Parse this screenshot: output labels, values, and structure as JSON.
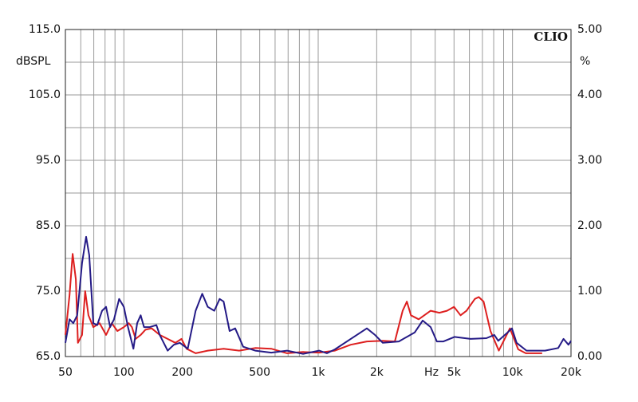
{
  "chart_data": {
    "type": "line",
    "brand": "CLIO",
    "ylabel": "dBSPL",
    "y2label": "%",
    "xlabel": "Hz",
    "xscale": "log",
    "grid": true,
    "xlim": [
      50,
      20000
    ],
    "xticks": [
      50,
      100,
      200,
      500,
      {
        "value": 1000,
        "label": "1k"
      },
      {
        "value": 2000,
        "label": "2k"
      },
      {
        "value": 5000,
        "label": "5k"
      },
      {
        "value": 10000,
        "label": "10k"
      },
      {
        "value": 20000,
        "label": "20k"
      }
    ],
    "xgrid": [
      60,
      70,
      80,
      90,
      300,
      400,
      600,
      700,
      800,
      900,
      3000,
      4000,
      6000,
      7000,
      8000,
      9000
    ],
    "ylim": [
      65,
      115
    ],
    "yticks": [
      {
        "value": 65,
        "label": "65.0"
      },
      {
        "value": 75,
        "label": "75.0"
      },
      {
        "value": 85,
        "label": "85.0"
      },
      {
        "value": 95,
        "label": "95.0"
      },
      {
        "value": 105,
        "label": "105.0"
      },
      {
        "value": 115,
        "label": "115.0"
      }
    ],
    "ygrid": [
      70,
      80,
      90,
      100,
      110
    ],
    "y2lim": [
      0,
      5
    ],
    "y2ticks": [
      {
        "value": 0,
        "label": "0.00"
      },
      {
        "value": 1,
        "label": "1.00"
      },
      {
        "value": 2,
        "label": "2.00"
      },
      {
        "value": 3,
        "label": "3.00"
      },
      {
        "value": 4,
        "label": "4.00"
      },
      {
        "value": 5,
        "label": "5.00"
      }
    ],
    "series": [
      {
        "color": "#dd1f1f",
        "axis": "y2",
        "x": [
          50,
          52.5,
          54.5,
          56.6,
          58,
          60.9,
          63.2,
          65.7,
          69.6,
          75,
          81,
          86.6,
          92.6,
          100,
          106,
          110,
          115,
          122,
          129,
          139,
          153,
          168,
          184,
          198,
          210,
          234,
          270,
          326,
          392,
          474,
          573,
          692,
          836,
          1010,
          1220,
          1470,
          1780,
          2150,
          2480,
          2720,
          2860,
          3000,
          3290,
          3790,
          4200,
          4600,
          5000,
          5400,
          5800,
          6400,
          6700,
          7100,
          7700,
          8500,
          9700,
          10700,
          11700,
          14200
        ],
        "values": [
          0.33,
          0.94,
          1.57,
          1.18,
          0.21,
          0.33,
          1.0,
          0.63,
          0.45,
          0.51,
          0.33,
          0.51,
          0.39,
          0.45,
          0.51,
          0.45,
          0.27,
          0.33,
          0.41,
          0.43,
          0.33,
          0.27,
          0.21,
          0.27,
          0.12,
          0.05,
          0.09,
          0.12,
          0.09,
          0.13,
          0.12,
          0.05,
          0.07,
          0.06,
          0.09,
          0.18,
          0.23,
          0.24,
          0.23,
          0.7,
          0.84,
          0.63,
          0.57,
          0.7,
          0.67,
          0.7,
          0.76,
          0.63,
          0.7,
          0.88,
          0.91,
          0.84,
          0.39,
          0.09,
          0.43,
          0.11,
          0.05,
          0.05
        ]
      },
      {
        "color": "#241a86",
        "axis": "y2",
        "x": [
          50,
          52.5,
          54.9,
          57.5,
          60.9,
          63.9,
          66.3,
          69.6,
          72.9,
          77.2,
          81,
          85,
          89,
          94.5,
          100,
          105,
          112,
          117,
          122,
          127,
          136,
          147,
          153,
          168,
          181,
          194,
          213,
          234,
          253,
          270,
          292,
          311,
          326,
          350,
          374,
          411,
          474,
          573,
          692,
          836,
          1010,
          1110,
          1220,
          1470,
          1780,
          1960,
          2150,
          2600,
          3140,
          3450,
          3790,
          4080,
          4410,
          5030,
          6080,
          7340,
          8060,
          8450,
          9290,
          9930,
          10500,
          11800,
          14700,
          17200,
          18300,
          19400,
          20000
        ],
        "values": [
          0.21,
          0.57,
          0.51,
          0.63,
          1.43,
          1.83,
          1.55,
          0.51,
          0.48,
          0.7,
          0.76,
          0.45,
          0.57,
          0.88,
          0.76,
          0.45,
          0.12,
          0.51,
          0.63,
          0.45,
          0.45,
          0.48,
          0.33,
          0.09,
          0.18,
          0.21,
          0.12,
          0.7,
          0.96,
          0.76,
          0.7,
          0.88,
          0.84,
          0.39,
          0.43,
          0.15,
          0.09,
          0.06,
          0.09,
          0.04,
          0.09,
          0.05,
          0.11,
          0.27,
          0.43,
          0.33,
          0.21,
          0.23,
          0.37,
          0.55,
          0.45,
          0.23,
          0.23,
          0.3,
          0.27,
          0.28,
          0.33,
          0.24,
          0.35,
          0.43,
          0.21,
          0.09,
          0.09,
          0.13,
          0.27,
          0.18,
          0.24
        ]
      }
    ]
  }
}
